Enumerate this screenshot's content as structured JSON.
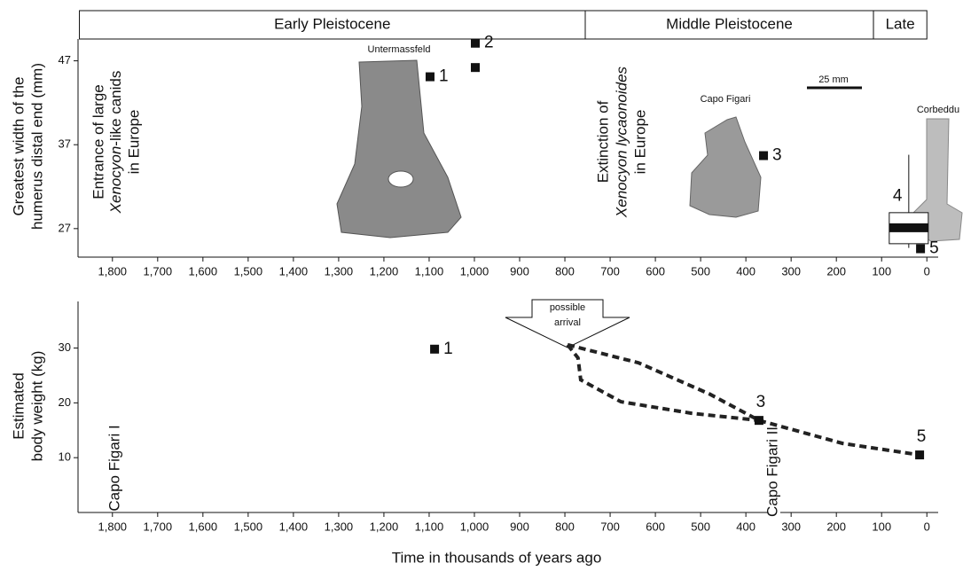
{
  "chart_data": [
    {
      "type": "scatter",
      "ylabel": [
        "Greatest width of the",
        "humerus distal end (mm)"
      ],
      "periods": [
        {
          "name": "Early Pleistocene",
          "from": 1873,
          "to": 755
        },
        {
          "name": "Middle Pleistocene",
          "from": 755,
          "to": 118
        },
        {
          "name": "Late",
          "from": 118,
          "to": 0
        }
      ],
      "x": [
        1098,
        998,
        998,
        361,
        14
      ],
      "values": [
        45.1,
        49.1,
        46.2,
        35.7,
        24.6
      ],
      "point_labels": [
        "1",
        "2",
        null,
        "3",
        "5"
      ],
      "box": {
        "label": "4",
        "x": 40,
        "whisker_low": 24.7,
        "q1": 25.2,
        "median": 27.1,
        "q3": 28.9,
        "whisker_high": 35.8
      },
      "xlim": [
        1876,
        -25
      ],
      "ylim": [
        23.6,
        49.6
      ],
      "yticks": [
        27,
        37,
        47
      ],
      "xticks": [
        {
          "value": 1800,
          "label": "1,800"
        },
        {
          "value": 1700,
          "label": "1,700"
        },
        {
          "value": 1600,
          "label": "1,600"
        },
        {
          "value": 1500,
          "label": "1,500"
        },
        {
          "value": 1400,
          "label": "1,400"
        },
        {
          "value": 1300,
          "label": "1,300"
        },
        {
          "value": 1200,
          "label": "1,200"
        },
        {
          "value": 1100,
          "label": "1,100"
        },
        {
          "value": 1000,
          "label": "1,000"
        },
        900,
        800,
        700,
        600,
        500,
        400,
        300,
        200,
        100,
        0
      ],
      "annotations": {
        "entrance": [
          "Entrance of large",
          "Xenocyon",
          "-like canids",
          "in Europe"
        ],
        "extinction": [
          "Extinction of",
          "Xenocyon lycaonoides",
          "in Europe"
        ],
        "sites": [
          "Untermassfeld",
          "Capo Figari",
          "Corbeddu"
        ],
        "scale_bar": "25 mm"
      }
    },
    {
      "type": "scatter",
      "ylabel": [
        "Estimated",
        "body weight (kg)"
      ],
      "xlabel": "Time in thousands of years ago",
      "x": [
        1088,
        371,
        16
      ],
      "values": [
        29.8,
        16.8,
        10.5
      ],
      "point_labels": [
        "1",
        "3",
        "5"
      ],
      "lines": [
        {
          "x": [
            794,
            637,
            480,
            371
          ],
          "values": [
            30.6,
            27.3,
            21.6,
            16.8
          ]
        },
        {
          "x": [
            794,
            771,
            765,
            676,
            520,
            371
          ],
          "values": [
            30.6,
            28.2,
            24.2,
            20.2,
            18.1,
            16.8
          ]
        },
        {
          "x": [
            371,
            186,
            16
          ],
          "values": [
            16.8,
            12.6,
            10.5
          ]
        }
      ],
      "axis_break": [
        351,
        324
      ],
      "xlim": [
        1876,
        -25
      ],
      "ylim": [
        0,
        38.5
      ],
      "yticks": [
        10,
        20,
        30
      ],
      "xticks": [
        {
          "value": 1800,
          "label": "1,800"
        },
        {
          "value": 1700,
          "label": "1,700"
        },
        {
          "value": 1600,
          "label": "1,600"
        },
        {
          "value": 1500,
          "label": "1,500"
        },
        {
          "value": 1400,
          "label": "1,400"
        },
        {
          "value": 1300,
          "label": "1,300"
        },
        {
          "value": 1200,
          "label": "1,200"
        },
        {
          "value": 1100,
          "label": "1,100"
        },
        {
          "value": 1000,
          "label": "1,000"
        },
        900,
        800,
        700,
        600,
        500,
        400,
        300,
        200,
        100,
        0
      ],
      "annotations": {
        "arrival": [
          "possible",
          "arrival"
        ],
        "sites": [
          "Capo Figari I",
          "Capo Figari II"
        ]
      }
    }
  ]
}
